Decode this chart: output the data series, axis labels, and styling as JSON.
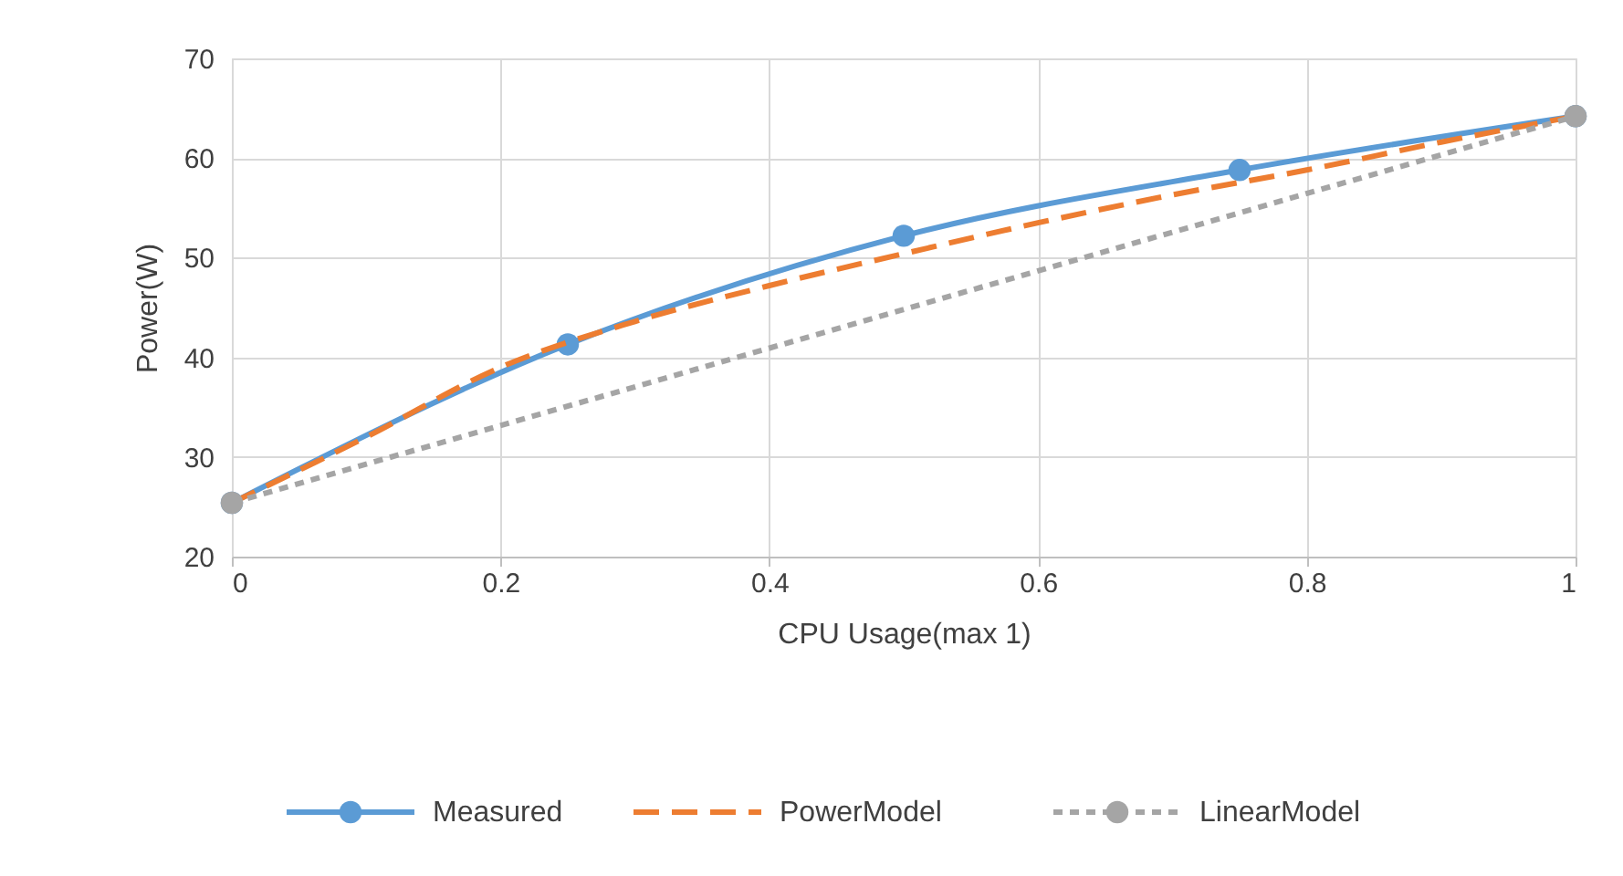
{
  "chart_data": {
    "type": "line",
    "xlabel": "CPU Usage(max 1)",
    "ylabel": "Power(W)",
    "xlim": [
      0,
      1
    ],
    "xticks": [
      0,
      0.2,
      0.4,
      0.6,
      0.8,
      1
    ],
    "ylim": [
      20,
      70
    ],
    "yticks": [
      20,
      30,
      40,
      50,
      60,
      70
    ],
    "grid": true,
    "legend": "bottom",
    "series": [
      {
        "name": "Measured",
        "color": "#5b9bd5",
        "line_style": "solid",
        "marker": "circle",
        "x": [
          0,
          0.25,
          0.5,
          0.75,
          1
        ],
        "values": [
          25.4,
          41.3,
          52.2,
          58.8,
          64.2
        ]
      },
      {
        "name": "PowerModel",
        "color": "#ed7d31",
        "line_style": "dashed",
        "marker": "none",
        "x": [
          0,
          0.1,
          0.2,
          0.3,
          0.4,
          0.5,
          0.6,
          0.7,
          0.8,
          0.9,
          1
        ],
        "values": [
          25.4,
          32.0,
          39.0,
          43.6,
          47.2,
          50.4,
          53.5,
          56.3,
          58.8,
          61.6,
          64.2
        ]
      },
      {
        "name": "LinearModel",
        "color": "#a5a5a5",
        "line_style": "dotted",
        "marker": "circle",
        "x": [
          0,
          1
        ],
        "values": [
          25.4,
          64.2
        ]
      }
    ]
  }
}
